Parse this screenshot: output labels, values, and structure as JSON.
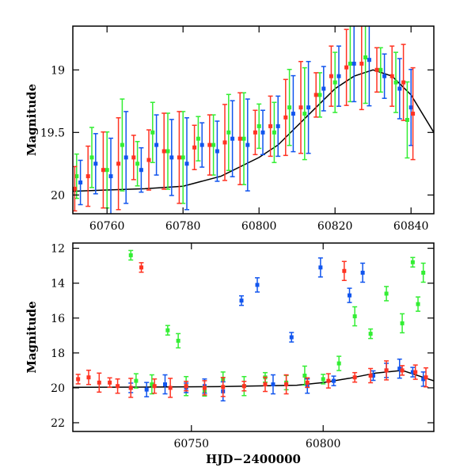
{
  "chart_data": [
    {
      "type": "scatter",
      "panel": "top",
      "xlabel": "",
      "ylabel": "Magnitude",
      "xlim": [
        60751,
        60846
      ],
      "ylim": [
        20.15,
        18.65
      ],
      "y_inverted": true,
      "xticks": [
        60760,
        60780,
        60800,
        60820,
        60840
      ],
      "xtick_labels": [
        "60760",
        "60780",
        "60800",
        "60820",
        "60840"
      ],
      "yticks": [
        19,
        19.5,
        20
      ],
      "ytick_labels": [
        "19",
        "19.5",
        "20"
      ],
      "grid": false,
      "legend": "none",
      "series": [
        {
          "color": "#33ee33",
          "x": [
            60752,
            60756,
            60760,
            60764,
            60768,
            60772,
            60776,
            60780,
            60784,
            60788,
            60792,
            60796,
            60800,
            60804,
            60808,
            60812,
            60816,
            60820,
            60824,
            60828,
            60832,
            60836,
            60839
          ],
          "y": [
            19.85,
            19.7,
            19.8,
            19.6,
            19.75,
            19.5,
            19.65,
            19.7,
            19.55,
            19.6,
            19.5,
            19.55,
            19.45,
            19.5,
            19.3,
            19.35,
            19.2,
            19.1,
            18.95,
            18.9,
            19.0,
            19.1,
            19.4
          ]
        },
        {
          "color": "#1155ee",
          "x": [
            60753,
            60757,
            60761,
            60765,
            60769,
            60773,
            60777,
            60781,
            60785,
            60789,
            60793,
            60797,
            60801,
            60805,
            60809,
            60813,
            60817,
            60821,
            60825,
            60829,
            60833,
            60837,
            60840
          ],
          "y": [
            19.9,
            19.75,
            19.85,
            19.7,
            19.8,
            19.6,
            19.7,
            19.75,
            19.6,
            19.65,
            19.55,
            19.6,
            19.5,
            19.45,
            19.35,
            19.3,
            19.15,
            19.05,
            18.95,
            18.92,
            19.05,
            19.15,
            19.3
          ]
        },
        {
          "color": "#ff3322",
          "x": [
            60751.5,
            60755,
            60759,
            60763,
            60767,
            60771,
            60775,
            60779,
            60783,
            60787,
            60791,
            60795,
            60799,
            60803,
            60807,
            60811,
            60815,
            60819,
            60823,
            60827,
            60831,
            60835,
            60838,
            60840.5
          ],
          "y": [
            19.95,
            19.85,
            19.8,
            19.75,
            19.7,
            19.72,
            19.65,
            19.7,
            19.62,
            19.6,
            19.58,
            19.55,
            19.5,
            19.45,
            19.38,
            19.3,
            19.2,
            19.05,
            18.98,
            18.95,
            19.0,
            19.05,
            19.1,
            19.35
          ]
        }
      ],
      "model_curve": {
        "color": "#000000",
        "x": [
          60751,
          60760,
          60770,
          60780,
          60790,
          60800,
          60805,
          60810,
          60815,
          60820,
          60825,
          60830,
          60835,
          60840,
          60846
        ],
        "y": [
          19.97,
          19.96,
          19.95,
          19.93,
          19.85,
          19.7,
          19.6,
          19.45,
          19.3,
          19.15,
          19.05,
          19.0,
          19.05,
          19.2,
          19.5
        ]
      }
    },
    {
      "type": "scatter",
      "panel": "bottom",
      "xlabel": "HJD−2400000",
      "ylabel": "Magnitude",
      "xlim": [
        60705,
        60842
      ],
      "ylim": [
        22.5,
        11.7
      ],
      "y_inverted": true,
      "xticks": [
        60750,
        60800
      ],
      "xtick_labels": [
        "60750",
        "60800"
      ],
      "yticks": [
        12,
        14,
        16,
        18,
        20,
        22
      ],
      "ytick_labels": [
        "12",
        "14",
        "16",
        "18",
        "20",
        "22"
      ],
      "grid": false,
      "legend": "none",
      "series": [
        {
          "color": "#33ee33",
          "x": [
            60727,
            60729,
            60735,
            60741,
            60745,
            60748,
            60755,
            60762,
            60770,
            60778,
            60786,
            60793,
            60800,
            60806,
            60812,
            60818,
            60824,
            60830,
            60834,
            60836,
            60838
          ],
          "y": [
            12.4,
            19.6,
            19.8,
            16.7,
            17.3,
            19.9,
            20.2,
            19.5,
            19.9,
            19.4,
            19.7,
            19.3,
            19.5,
            18.6,
            15.9,
            16.9,
            14.6,
            16.3,
            12.8,
            15.2,
            13.4
          ]
        },
        {
          "color": "#1155ee",
          "x": [
            60727,
            60733,
            60740,
            60748,
            60755,
            60762,
            60769,
            60775,
            60781,
            60788,
            60794,
            60799,
            60804,
            60810,
            60815,
            60819,
            60824,
            60829,
            60834,
            60838
          ],
          "y": [
            20.0,
            20.1,
            19.8,
            20.0,
            19.9,
            20.2,
            15.0,
            14.1,
            19.8,
            17.1,
            19.9,
            13.1,
            19.6,
            14.7,
            13.4,
            19.3,
            19.0,
            18.9,
            19.1,
            19.5
          ]
        },
        {
          "color": "#ff3322",
          "x": [
            60707,
            60711,
            60715,
            60719,
            60722,
            60727,
            60731,
            60736,
            60742,
            60748,
            60755,
            60762,
            60770,
            60778,
            60786,
            60794,
            60802,
            60808,
            60812,
            60818,
            60824,
            60830,
            60835,
            60839
          ],
          "y": [
            19.5,
            19.4,
            19.7,
            19.7,
            19.9,
            20.0,
            13.1,
            19.9,
            20.0,
            19.9,
            20.0,
            19.95,
            19.9,
            19.8,
            19.8,
            19.7,
            19.6,
            13.3,
            19.4,
            19.3,
            19.0,
            19.0,
            19.1,
            19.4
          ]
        }
      ],
      "model_curve": {
        "color": "#000000",
        "x": [
          60705,
          60730,
          60760,
          60790,
          60800,
          60810,
          60820,
          60830,
          60842
        ],
        "y": [
          19.97,
          19.96,
          19.93,
          19.85,
          19.7,
          19.45,
          19.15,
          19.0,
          19.6
        ]
      }
    }
  ]
}
